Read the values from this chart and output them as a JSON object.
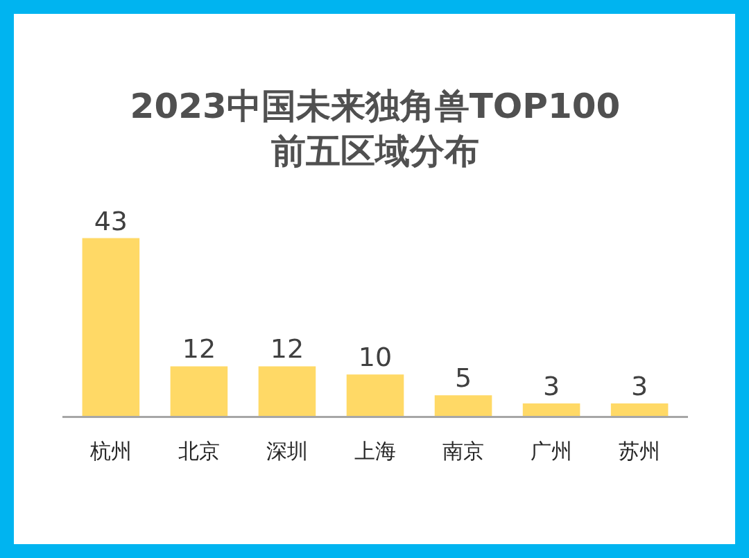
{
  "chart_data": {
    "type": "bar",
    "title": "2023中国未来独角兽TOP100\n前五区域分布",
    "categories": [
      "杭州",
      "北京",
      "深圳",
      "上海",
      "南京",
      "广州",
      "苏州"
    ],
    "values": [
      43,
      12,
      12,
      10,
      5,
      3,
      3
    ],
    "color": "#ffd966",
    "data_labels": true,
    "grid": false,
    "legend": false
  }
}
